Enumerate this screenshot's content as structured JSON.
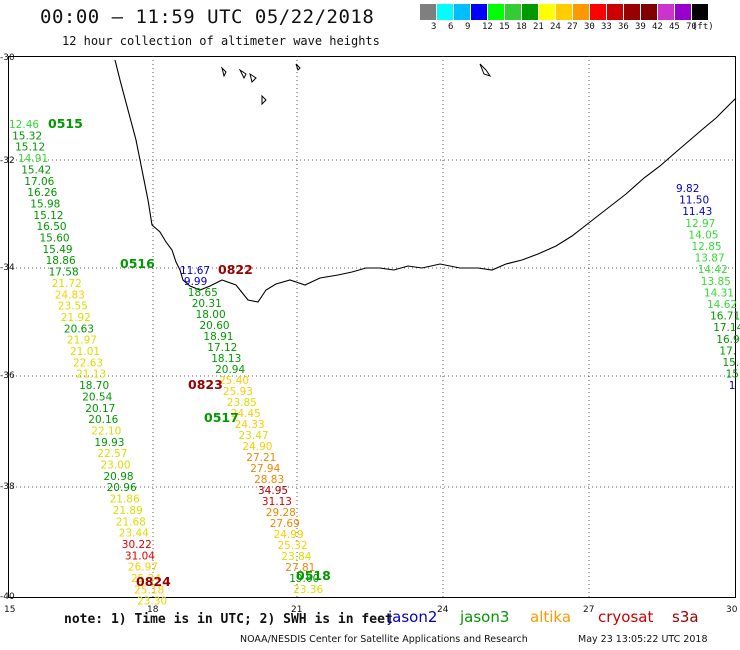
{
  "header": {
    "title": "00:00 – 11:59 UTC 05/22/2018",
    "subtitle": "12 hour collection of altimeter wave heights"
  },
  "colorbar": {
    "colors": [
      "#7f7f7f",
      "#00ffff",
      "#00bfff",
      "#0000ff",
      "#00ff00",
      "#33cc33",
      "#009900",
      "#ffff00",
      "#ffcc00",
      "#ff9900",
      "#ff0000",
      "#cc0000",
      "#990000",
      "#800000",
      "#cc33cc",
      "#9900cc",
      "#000000"
    ],
    "labels": [
      "3",
      "6",
      "9",
      "12",
      "15",
      "18",
      "21",
      "24",
      "27",
      "30",
      "33",
      "36",
      "39",
      "42",
      "45",
      "70",
      "(ft)"
    ]
  },
  "axes": {
    "lat_labels": [
      "-30",
      "-32",
      "-34",
      "-36",
      "-38",
      "-40"
    ],
    "lon_labels": [
      "15",
      "18",
      "21",
      "24",
      "27",
      "30"
    ]
  },
  "note": "note: 1) Time is in UTC; 2) SWH is in feet",
  "legend": [
    {
      "name": "jason2",
      "color": "#0000cc"
    },
    {
      "name": "jason3",
      "color": "#009900"
    },
    {
      "name": "altika",
      "color": "#ff9900"
    },
    {
      "name": "cryosat",
      "color": "#cc0000"
    },
    {
      "name": "s3a",
      "color": "#990000"
    }
  ],
  "footer": {
    "credit": "NOAA/NESDIS Center for Satellite Applications and Research",
    "timestamp": "May 23 13:05:22 UTC 2018"
  },
  "time_labels": [
    {
      "text": "0515",
      "color": "#009900"
    },
    {
      "text": "0516",
      "color": "#009900"
    },
    {
      "text": "0822",
      "color": "#990000"
    },
    {
      "text": "0823",
      "color": "#990000"
    },
    {
      "text": "0517",
      "color": "#009900"
    },
    {
      "text": "0518",
      "color": "#009900"
    },
    {
      "text": "0824",
      "color": "#990000"
    }
  ],
  "tracks": {
    "track_0515": [
      "12.46",
      "15.32",
      "15.12",
      "14.91",
      "15.42",
      "17.06",
      "16.26",
      "15.98",
      "15.12",
      "16.50",
      "15.60",
      "15.49",
      "18.86",
      "17.58",
      "21.72",
      "24.83",
      "23.55",
      "21.92",
      "20.63",
      "21.97",
      "21.01",
      "22.63",
      "21.13",
      "18.70",
      "20.54",
      "20.17",
      "20.16",
      "22.10",
      "19.93",
      "22.57",
      "23.00",
      "20.98",
      "20.96",
      "21.86",
      "21.89",
      "21.68",
      "23.44",
      "30.22",
      "31.04",
      "26.97",
      "25.24",
      "25.18",
      "23.30"
    ],
    "track_0822": [
      "11.67",
      "9.99",
      "18.65",
      "20.31",
      "18.00",
      "20.60",
      "18.91",
      "17.12",
      "18.13",
      "20.94",
      "25.40",
      "25.93",
      "23.85",
      "24.45",
      "24.33",
      "23.47",
      "24.90",
      "27.21",
      "27.94",
      "28.83",
      "34.95",
      "31.13",
      "29.28",
      "27.69",
      "24.99",
      "25.32",
      "23.84",
      "27.81",
      "19.60",
      "23.36"
    ],
    "track_east": [
      "9.82",
      "11.50",
      "11.43",
      "12.97",
      "14.05",
      "12.85",
      "13.87",
      "14.42",
      "13.85",
      "14.31",
      "14.62",
      "16.71",
      "17.14",
      "16.9",
      "17.",
      "15.",
      "15",
      "1"
    ]
  }
}
